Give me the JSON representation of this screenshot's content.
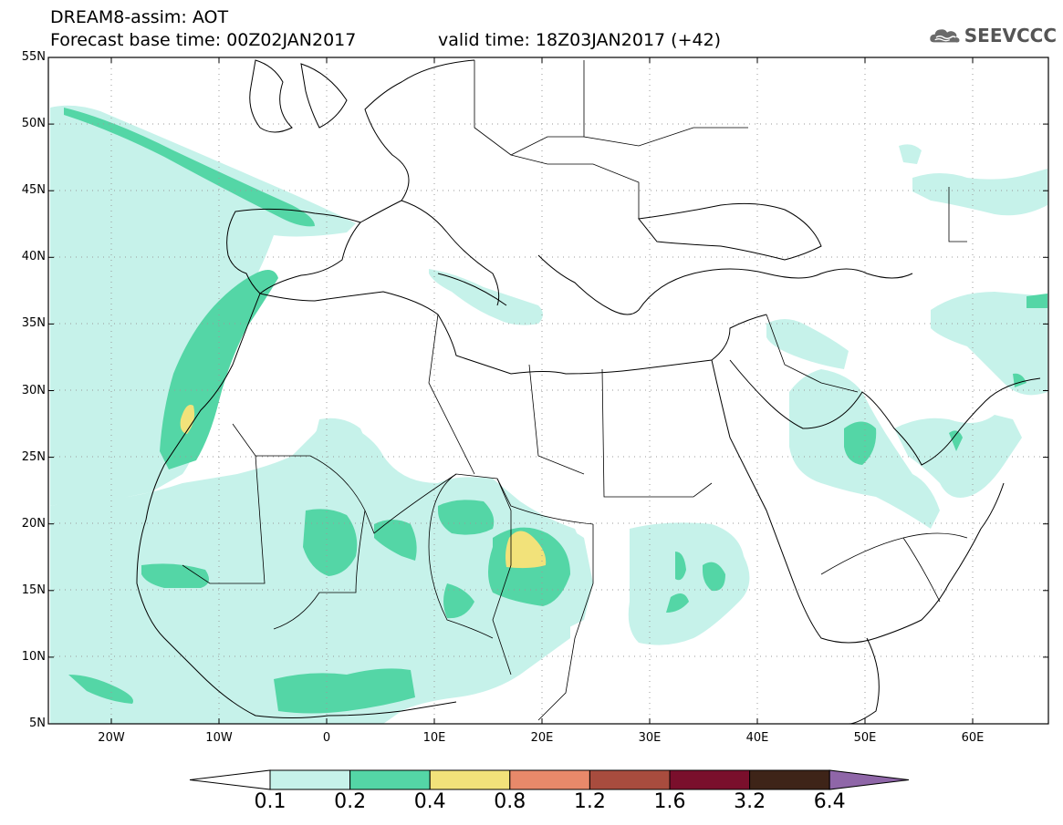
{
  "header": {
    "title_line1": "DREAM8-assim: AOT",
    "title_line2": "Forecast base time: 00Z02JAN2017",
    "valid_time": "valid time: 18Z03JAN2017 (+42)",
    "logo_text": "SEEVCCC"
  },
  "map": {
    "lat_labels": [
      "55N",
      "50N",
      "45N",
      "40N",
      "35N",
      "30N",
      "25N",
      "20N",
      "15N",
      "10N",
      "5N"
    ],
    "lon_labels": [
      "20W",
      "10W",
      "0",
      "10E",
      "20E",
      "30E",
      "40E",
      "50E",
      "60E"
    ],
    "colors": {
      "band_0_1": "#c6f2ea",
      "band_0_2": "#54d6a6",
      "band_0_4": "#f2e27a",
      "grid": "#888888"
    }
  },
  "colorbar": {
    "labels": [
      "0.1",
      "0.2",
      "0.4",
      "0.8",
      "1.2",
      "1.6",
      "3.2",
      "6.4"
    ],
    "colors": [
      "#ffffff",
      "#c6f2ea",
      "#54d6a6",
      "#f2e27a",
      "#e8896a",
      "#a84c3e",
      "#7a0f2c",
      "#3e2418",
      "#8f66a8"
    ]
  }
}
